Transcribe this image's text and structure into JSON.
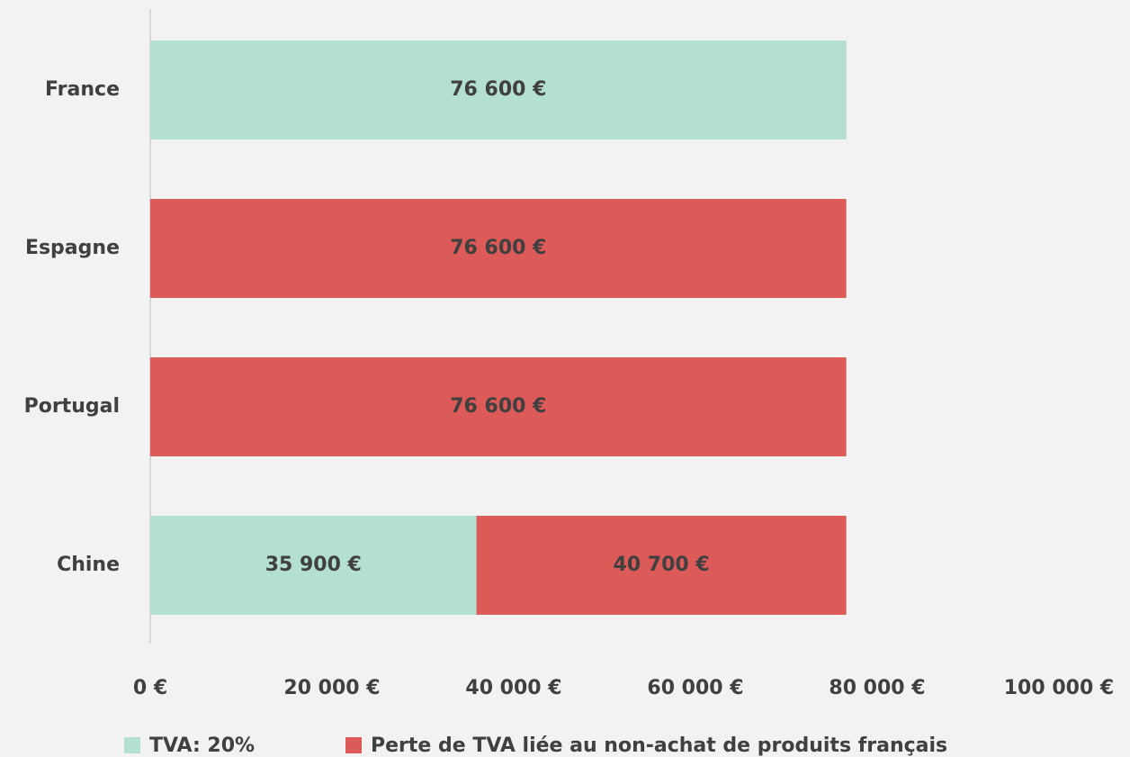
{
  "chart_data": {
    "type": "stacked_barh",
    "categories": [
      "France",
      "Espagne",
      "Portugal",
      "Chine"
    ],
    "series": [
      {
        "name": "TVA: 20%",
        "color": "#b3e0cf",
        "values": [
          76600,
          null,
          null,
          35900
        ],
        "value_labels": [
          "76 600 €",
          null,
          null,
          "35 900 €"
        ]
      },
      {
        "name": "Perte de TVA liée au non-achat de produits français",
        "color": "#dc5a58",
        "values": [
          null,
          76600,
          76600,
          40700
        ],
        "value_labels": [
          null,
          "76 600 €",
          "76 600 €",
          "40 700 €"
        ]
      }
    ],
    "xlim": [
      0,
      100000
    ],
    "xticks": [
      {
        "value": 0,
        "label": "0 €"
      },
      {
        "value": 20000,
        "label": "20 000 €"
      },
      {
        "value": 40000,
        "label": "40 000 €"
      },
      {
        "value": 60000,
        "label": "60 000 €"
      },
      {
        "value": 80000,
        "label": "80 000 €"
      },
      {
        "value": 100000,
        "label": "100 000 €"
      }
    ],
    "legend": "bottom"
  }
}
